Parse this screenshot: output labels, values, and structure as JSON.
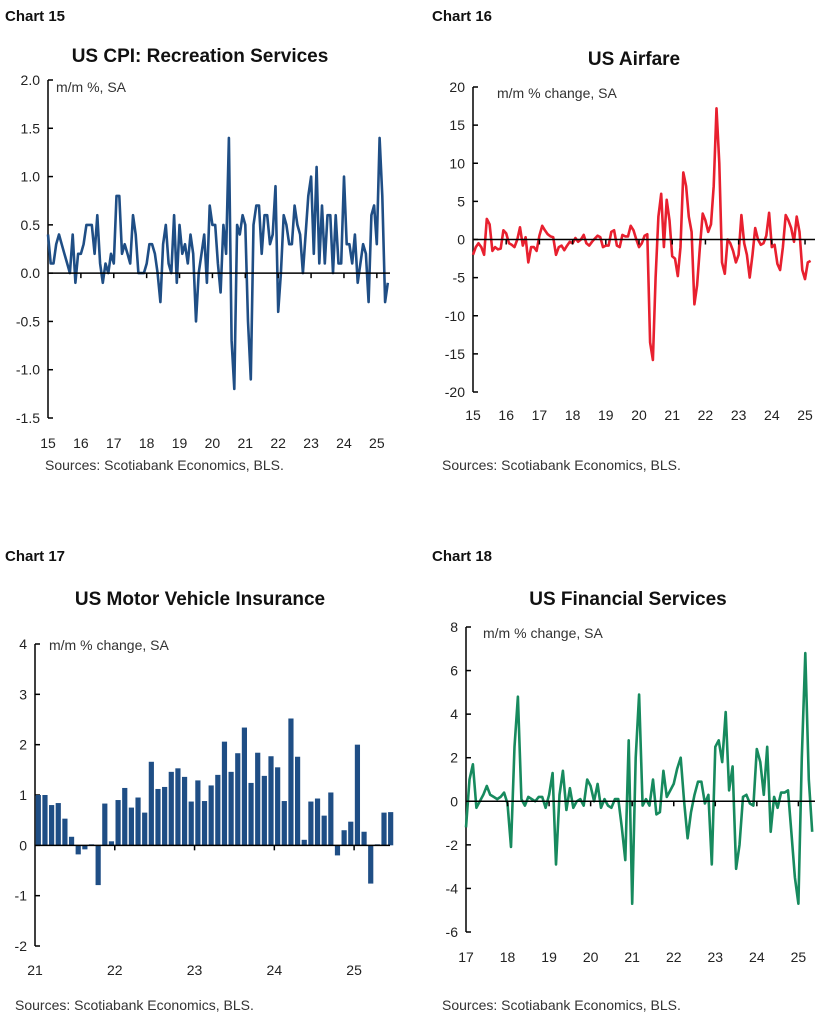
{
  "chart_data": [
    {
      "type": "line",
      "label": "Chart 15",
      "title": "US CPI: Recreation Services",
      "unit_label": "m/m %, SA",
      "source": "Sources: Scotiabank Economics, BLS.",
      "color": "#1f4e85",
      "start_year": 2015,
      "frequency": "monthly",
      "ylim": [
        -1.5,
        2.0
      ],
      "yticks": [
        2.0,
        1.5,
        1.0,
        0.5,
        0.0,
        -0.5,
        -1.0,
        -1.5
      ],
      "ytick_labels": [
        "2.0",
        "1.5",
        "1.0",
        "0.5",
        "0.0",
        "-0.5",
        "-1.0",
        "-1.5"
      ],
      "xlim": [
        2015,
        2025.4
      ],
      "xticks": [
        2015,
        2016,
        2017,
        2018,
        2019,
        2020,
        2021,
        2022,
        2023,
        2024,
        2025
      ],
      "xtick_labels": [
        "15",
        "16",
        "17",
        "18",
        "19",
        "20",
        "21",
        "22",
        "23",
        "24",
        "25"
      ],
      "values": [
        0.4,
        0.1,
        0.1,
        0.3,
        0.4,
        0.3,
        0.2,
        0.1,
        0.0,
        0.4,
        -0.1,
        0.2,
        0.2,
        0.3,
        0.5,
        0.5,
        0.5,
        0.2,
        0.6,
        0.1,
        -0.1,
        0.1,
        0.0,
        0.2,
        0.1,
        0.8,
        0.8,
        0.2,
        0.3,
        0.2,
        0.1,
        0.6,
        0.4,
        0.0,
        0.0,
        0.0,
        0.1,
        0.3,
        0.3,
        0.2,
        0.0,
        -0.3,
        0.3,
        0.5,
        0.1,
        0.0,
        0.6,
        -0.1,
        0.5,
        0.2,
        0.3,
        0.1,
        0.4,
        0.2,
        -0.5,
        0.0,
        0.2,
        0.4,
        -0.1,
        0.7,
        0.5,
        0.5,
        0.1,
        -0.2,
        0.5,
        0.2,
        1.4,
        -0.7,
        -1.2,
        0.5,
        0.4,
        0.6,
        0.5,
        -0.5,
        -1.1,
        0.5,
        0.7,
        0.7,
        0.2,
        0.6,
        0.6,
        0.3,
        0.4,
        0.9,
        -0.4,
        0.0,
        0.6,
        0.5,
        0.3,
        0.3,
        0.7,
        0.5,
        0.4,
        0.0,
        0.4,
        0.8,
        1.0,
        0.2,
        1.1,
        0.1,
        0.7,
        0.1,
        0.6,
        0.6,
        0.0,
        0.6,
        0.1,
        0.1,
        1.0,
        0.3,
        0.3,
        0.1,
        0.4,
        -0.1,
        0.1,
        0.3,
        0.2,
        -0.3,
        0.6,
        0.7,
        0.3,
        1.4,
        0.8,
        -0.3,
        -0.1
      ]
    },
    {
      "type": "line",
      "label": "Chart 16",
      "title": "US Airfare",
      "unit_label": "m/m % change, SA",
      "source": "Sources: Scotiabank Economics, BLS.",
      "color": "#e8202f",
      "start_year": 2015,
      "frequency": "monthly",
      "ylim": [
        -20,
        20
      ],
      "yticks": [
        20,
        15,
        10,
        5,
        0,
        -5,
        -10,
        -15,
        -20
      ],
      "ytick_labels": [
        "20",
        "15",
        "10",
        "5",
        "0",
        "-5",
        "-10",
        "-15",
        "-20"
      ],
      "xlim": [
        2015,
        2025.3
      ],
      "xticks": [
        2015,
        2016,
        2017,
        2018,
        2019,
        2020,
        2021,
        2022,
        2023,
        2024,
        2025
      ],
      "xtick_labels": [
        "15",
        "16",
        "17",
        "18",
        "19",
        "20",
        "21",
        "22",
        "23",
        "24",
        "25"
      ],
      "values": [
        -2,
        -1,
        -0.5,
        -1,
        -2,
        2.7,
        2,
        -1.5,
        -1,
        -1.3,
        -1.2,
        1.2,
        0.8,
        -0.5,
        -0.7,
        -1,
        0,
        1.6,
        -0.8,
        0.3,
        -3,
        -1,
        -1,
        -1.5,
        0.5,
        1.8,
        1.2,
        0.7,
        0.4,
        0.3,
        -2,
        -1,
        -0.8,
        -1.4,
        -0.8,
        -0.3,
        -0.5,
        0.2,
        -0.3,
        0,
        0.6,
        -0.5,
        -0.8,
        -0.3,
        0.1,
        0.5,
        0.3,
        -1,
        -0.8,
        -0.8,
        1,
        1.2,
        -0.8,
        -1,
        0.6,
        0.4,
        0.4,
        1.8,
        1.2,
        0,
        -1,
        -0.5,
        0.5,
        0.7,
        -13.5,
        -15.8,
        -5,
        3,
        6,
        -1,
        5.2,
        2.5,
        -2.2,
        -2.5,
        -4.8,
        -1,
        8.8,
        7,
        3,
        1,
        -8.5,
        -6,
        -1,
        3.4,
        2.5,
        1,
        2,
        7,
        17.2,
        10,
        -3,
        -4.5,
        0,
        -0.5,
        -1.5,
        -3,
        -2,
        3.2,
        -0.5,
        -2,
        -5,
        -2,
        1.5,
        0,
        -0.7,
        -0.5,
        0.5,
        3.5,
        -1,
        -0.7,
        -3.2,
        -4,
        -1,
        3.2,
        2.5,
        1.5,
        -0.3,
        3,
        1,
        -4,
        -5.2,
        -3,
        -2.8
      ]
    },
    {
      "type": "bar",
      "label": "Chart 17",
      "title": "US Motor Vehicle Insurance",
      "unit_label": "m/m % change, SA",
      "source": "Sources: Scotiabank Economics, BLS.",
      "color": "#1f4e85",
      "start_year": 2021,
      "frequency": "monthly",
      "ylim": [
        -2,
        4
      ],
      "yticks": [
        4,
        3,
        2,
        1,
        0,
        -1,
        -2
      ],
      "ytick_labels": [
        "4",
        "3",
        "2",
        "1",
        "0",
        "-1",
        "-2"
      ],
      "xlim": [
        2021,
        2025.45
      ],
      "xticks": [
        2021,
        2022,
        2023,
        2024,
        2025
      ],
      "xtick_labels": [
        "21",
        "22",
        "23",
        "24",
        "25"
      ],
      "values": [
        1.0,
        1.0,
        0.8,
        0.84,
        0.53,
        0.17,
        -0.18,
        -0.08,
        0.02,
        -0.79,
        0.83,
        0.08,
        0.9,
        1.14,
        0.75,
        0.95,
        0.65,
        1.66,
        1.12,
        1.16,
        1.46,
        1.53,
        1.36,
        0.87,
        1.29,
        0.88,
        1.19,
        1.4,
        2.06,
        1.46,
        1.83,
        2.34,
        1.24,
        1.84,
        1.38,
        1.77,
        1.55,
        0.88,
        2.52,
        1.76,
        0.11,
        0.87,
        0.93,
        0.59,
        1.05,
        -0.2,
        0.3,
        0.47,
        2.0,
        0.27,
        -0.76,
        0.02,
        0.65,
        0.66
      ]
    },
    {
      "type": "line",
      "label": "Chart 18",
      "title": "US Financial Services",
      "unit_label": "m/m % change, SA",
      "source": "Sources: Scotiabank Economics, BLS.",
      "color": "#178a5e",
      "start_year": 2017,
      "frequency": "monthly",
      "ylim": [
        -6,
        8
      ],
      "yticks": [
        8,
        6,
        4,
        2,
        0,
        -2,
        -4,
        -6
      ],
      "ytick_labels": [
        "8",
        "6",
        "4",
        "2",
        "0",
        "-2",
        "-4",
        "-6"
      ],
      "xlim": [
        2017,
        2025.4
      ],
      "xticks": [
        2017,
        2018,
        2019,
        2020,
        2021,
        2022,
        2023,
        2024,
        2025
      ],
      "xtick_labels": [
        "17",
        "18",
        "19",
        "20",
        "21",
        "22",
        "23",
        "24",
        "25"
      ],
      "values": [
        -1.2,
        1,
        1.7,
        -0.3,
        0,
        0.3,
        0.7,
        0.3,
        0.2,
        0.1,
        0.2,
        0.4,
        -0.1,
        -2.1,
        2.5,
        4.8,
        0.1,
        -0.2,
        0.2,
        0.1,
        0,
        0.2,
        0.2,
        -0.3,
        0.3,
        1.3,
        -2.9,
        0.3,
        1.4,
        -0.4,
        0.6,
        -0.3,
        0,
        0.1,
        -0.2,
        1,
        0.7,
        0,
        0.8,
        -0.3,
        0.1,
        -0.2,
        -0.3,
        0.1,
        0.1,
        -1.2,
        -2.7,
        2.8,
        -4.7,
        2,
        4.9,
        -0.2,
        0.1,
        -0.2,
        1,
        -0.6,
        -0.5,
        1.4,
        0.2,
        0.5,
        0.8,
        1.5,
        2,
        0,
        -1.7,
        -0.5,
        0.3,
        0.9,
        0.9,
        -0.1,
        0.3,
        -2.9,
        2.5,
        2.8,
        1.8,
        4.1,
        0.5,
        1.6,
        -3.1,
        -2,
        0.2,
        0.3,
        -0.1,
        -0.2,
        2.4,
        1.8,
        0.3,
        2.5,
        -1.4,
        0.2,
        -0.3,
        0.4,
        0.4,
        0.5,
        -1.5,
        -3.5,
        -4.7,
        2,
        6.8,
        1,
        -1.4
      ]
    }
  ]
}
